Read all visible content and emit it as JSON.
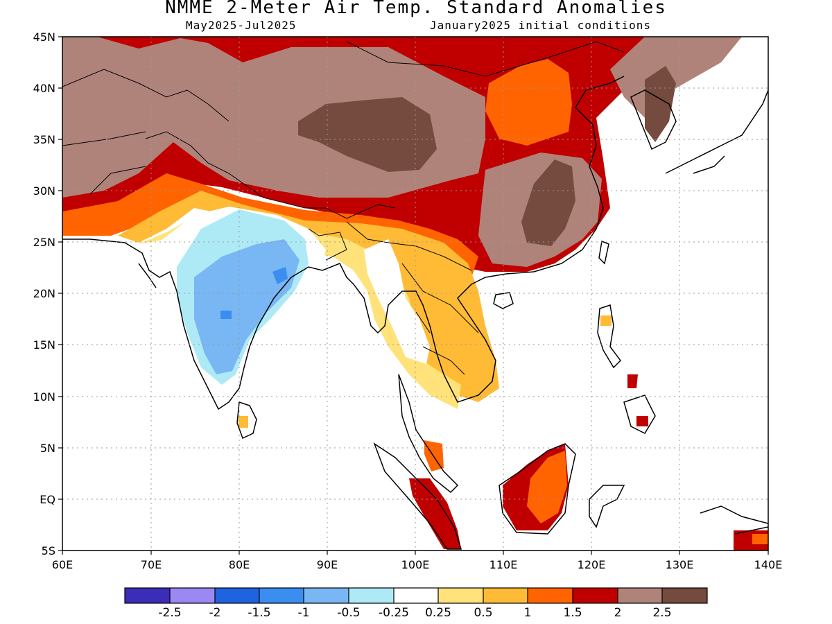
{
  "header": {
    "title": "NMME 2-Meter Air Temp. Standard Anomalies",
    "period": "May2025-Jul2025",
    "initial_conditions": "January2025 initial conditions"
  },
  "map": {
    "lon_range": [
      60,
      140
    ],
    "lat_range": [
      -5,
      45
    ],
    "lat_labels": [
      "45N",
      "40N",
      "35N",
      "30N",
      "25N",
      "20N",
      "15N",
      "10N",
      "5N",
      "EQ",
      "5S"
    ],
    "lon_labels": [
      "60E",
      "70E",
      "80E",
      "90E",
      "100E",
      "110E",
      "120E",
      "130E",
      "140E"
    ]
  },
  "colorbar": {
    "colors": [
      "#3b2db8",
      "#9b88f2",
      "#1f63e0",
      "#3a8ef0",
      "#78b6f4",
      "#aeeaf6",
      "#ffffff",
      "#ffe27a",
      "#ffbb35",
      "#ff6400",
      "#c00000",
      "#b0837a",
      "#754a3f"
    ],
    "labels": [
      "-2.5",
      "-2",
      "-1.5",
      "-1",
      "-0.5",
      "-0.25",
      "0.25",
      "0.5",
      "1",
      "1.5",
      "2",
      "2.5"
    ]
  }
}
